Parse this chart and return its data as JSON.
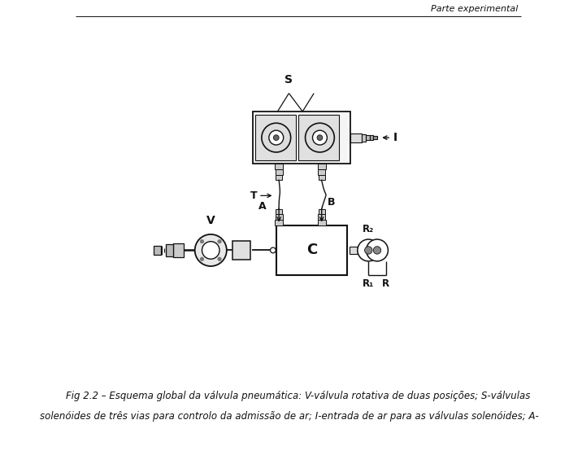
{
  "bg_color": "#ffffff",
  "line_color": "#111111",
  "header_text": "Parte experimental",
  "caption_line1": "Fig 2.2 – Esquema global da válvula pneumática: V-válvula rotativa de duas posições; S-válvulas",
  "caption_line2": "solenóides de três vias para controlo da admissão de ar; I-entrada de ar para as válvulas solenóides; A-",
  "label_S": "S",
  "label_I": "I",
  "label_T": "T",
  "label_A": "A",
  "label_B": "B",
  "label_V": "V",
  "label_C": "C",
  "label_R2": "R₂",
  "label_R1": "R₁",
  "label_R": "R",
  "figsize": [
    7.16,
    5.59
  ],
  "dpi": 100
}
